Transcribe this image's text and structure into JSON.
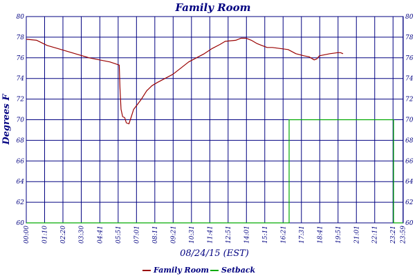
{
  "chart_data": {
    "type": "line",
    "title": "Family Room",
    "xlabel": "08/24/15 (EST)",
    "ylabel": "Degrees F",
    "ylim": [
      60,
      80
    ],
    "yticks": [
      60,
      62,
      64,
      66,
      68,
      70,
      72,
      74,
      76,
      78,
      80
    ],
    "xlim": [
      0,
      1440
    ],
    "xticks": [
      {
        "label": "00:00",
        "t": 0
      },
      {
        "label": "01:10",
        "t": 70
      },
      {
        "label": "02:20",
        "t": 140
      },
      {
        "label": "03:30",
        "t": 210
      },
      {
        "label": "04:41",
        "t": 281
      },
      {
        "label": "05:51",
        "t": 351
      },
      {
        "label": "07:01",
        "t": 421
      },
      {
        "label": "08:11",
        "t": 491
      },
      {
        "label": "09:21",
        "t": 561
      },
      {
        "label": "10:31",
        "t": 631
      },
      {
        "label": "11:41",
        "t": 701
      },
      {
        "label": "12:51",
        "t": 771
      },
      {
        "label": "14:01",
        "t": 841
      },
      {
        "label": "15:11",
        "t": 911
      },
      {
        "label": "16:21",
        "t": 981
      },
      {
        "label": "17:31",
        "t": 1051
      },
      {
        "label": "18:41",
        "t": 1121
      },
      {
        "label": "19:51",
        "t": 1191
      },
      {
        "label": "21:01",
        "t": 1261
      },
      {
        "label": "22:11",
        "t": 1331
      },
      {
        "label": "23:21",
        "t": 1401
      },
      {
        "label": "23:59",
        "t": 1439
      }
    ],
    "grid": true,
    "legend_position": "bottom-center",
    "series": [
      {
        "name": "Family Room",
        "color": "#990000",
        "points": [
          [
            0,
            77.8
          ],
          [
            40,
            77.7
          ],
          [
            80,
            77.2
          ],
          [
            120,
            76.9
          ],
          [
            160,
            76.6
          ],
          [
            200,
            76.3
          ],
          [
            240,
            76.0
          ],
          [
            280,
            75.8
          ],
          [
            320,
            75.6
          ],
          [
            355,
            75.3
          ],
          [
            358,
            73.0
          ],
          [
            362,
            71.0
          ],
          [
            368,
            70.3
          ],
          [
            376,
            70.2
          ],
          [
            382,
            69.7
          ],
          [
            392,
            69.6
          ],
          [
            400,
            70.2
          ],
          [
            410,
            71.0
          ],
          [
            425,
            71.5
          ],
          [
            440,
            72.0
          ],
          [
            460,
            72.8
          ],
          [
            480,
            73.3
          ],
          [
            500,
            73.6
          ],
          [
            530,
            74.0
          ],
          [
            560,
            74.4
          ],
          [
            590,
            75.0
          ],
          [
            620,
            75.6
          ],
          [
            650,
            76.0
          ],
          [
            680,
            76.4
          ],
          [
            710,
            76.9
          ],
          [
            740,
            77.3
          ],
          [
            760,
            77.6
          ],
          [
            800,
            77.7
          ],
          [
            820,
            77.9
          ],
          [
            840,
            77.9
          ],
          [
            860,
            77.7
          ],
          [
            880,
            77.4
          ],
          [
            900,
            77.2
          ],
          [
            920,
            77.0
          ],
          [
            940,
            77.0
          ],
          [
            1000,
            76.8
          ],
          [
            1030,
            76.4
          ],
          [
            1060,
            76.2
          ],
          [
            1080,
            76.1
          ],
          [
            1100,
            75.8
          ],
          [
            1110,
            75.9
          ],
          [
            1120,
            76.2
          ],
          [
            1140,
            76.3
          ],
          [
            1160,
            76.4
          ],
          [
            1190,
            76.5
          ],
          [
            1200,
            76.5
          ],
          [
            1210,
            76.4
          ]
        ]
      },
      {
        "name": "Setback",
        "color": "#00aa00",
        "points": [
          [
            0,
            60
          ],
          [
            1004,
            60
          ],
          [
            1004,
            70
          ],
          [
            1403,
            70
          ],
          [
            1403,
            60
          ],
          [
            1439,
            60
          ]
        ]
      }
    ]
  }
}
